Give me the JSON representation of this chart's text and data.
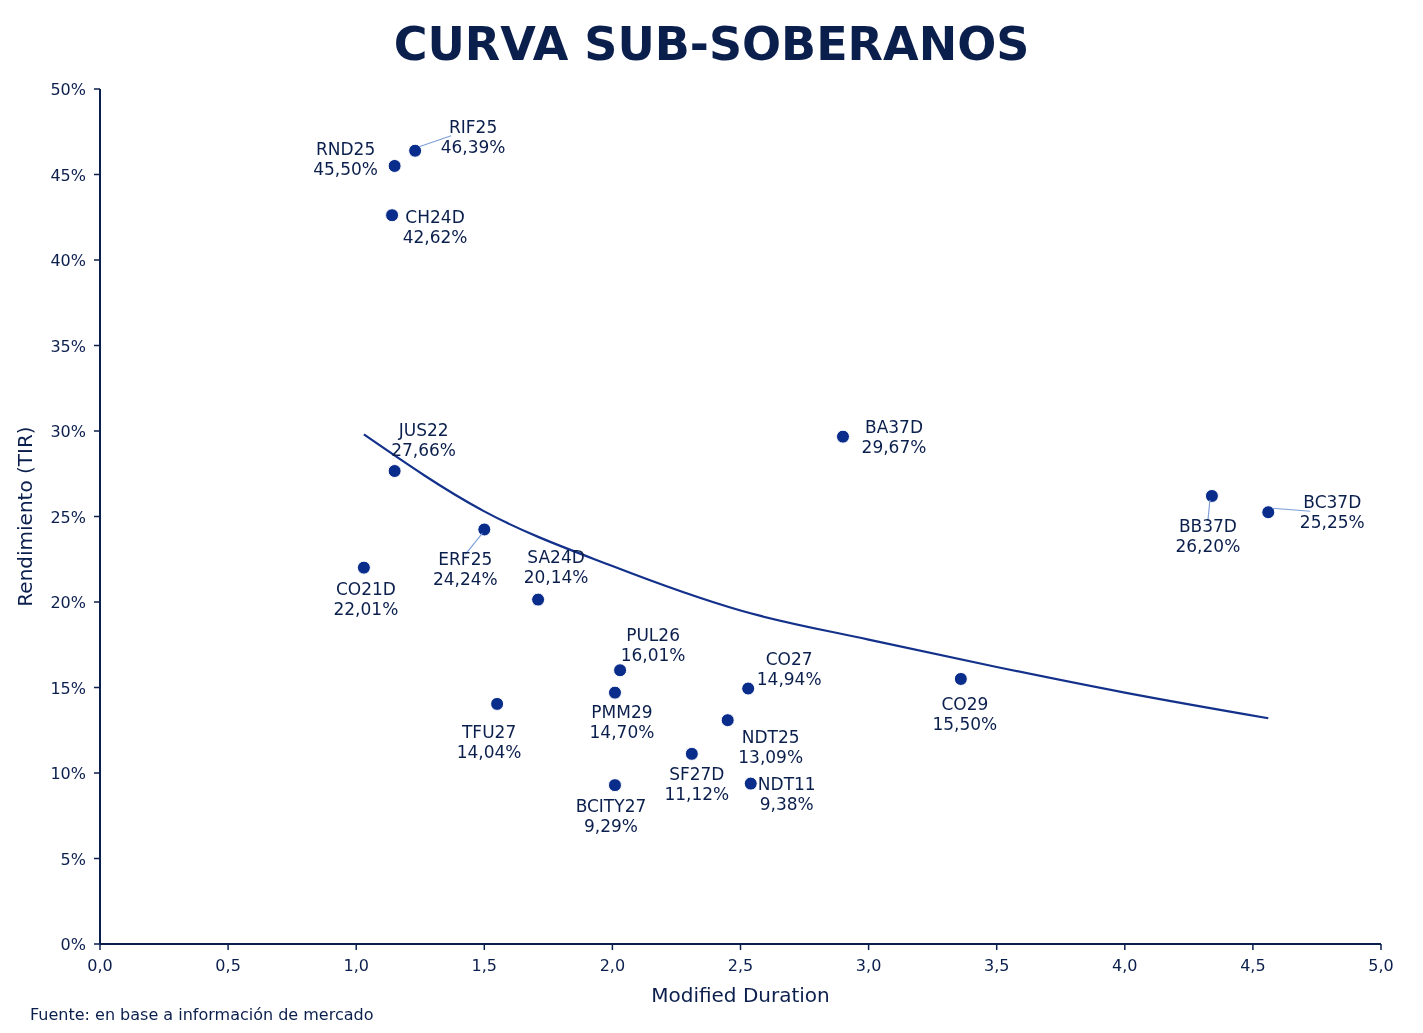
{
  "chart_data": {
    "type": "scatter",
    "title": "CURVA SUB-SOBERANOS",
    "xlabel": "Modified Duration",
    "ylabel": "Rendimiento (TIR)",
    "xlim": [
      0,
      5
    ],
    "ylim": [
      0,
      50
    ],
    "xticks": [
      {
        "value": 0,
        "label": "0,0"
      },
      {
        "value": 0.5,
        "label": "0,5"
      },
      {
        "value": 1,
        "label": "1,0"
      },
      {
        "value": 1.5,
        "label": "1,5"
      },
      {
        "value": 2,
        "label": "2,0"
      },
      {
        "value": 2.5,
        "label": "2,5"
      },
      {
        "value": 3,
        "label": "3,0"
      },
      {
        "value": 3.5,
        "label": "3,5"
      },
      {
        "value": 4,
        "label": "4,0"
      },
      {
        "value": 4.5,
        "label": "4,5"
      },
      {
        "value": 5,
        "label": "5,0"
      }
    ],
    "yticks": [
      {
        "value": 0,
        "label": "0%"
      },
      {
        "value": 5,
        "label": "5%"
      },
      {
        "value": 10,
        "label": "10%"
      },
      {
        "value": 15,
        "label": "15%"
      },
      {
        "value": 20,
        "label": "20%"
      },
      {
        "value": 25,
        "label": "25%"
      },
      {
        "value": 30,
        "label": "30%"
      },
      {
        "value": 35,
        "label": "35%"
      },
      {
        "value": 40,
        "label": "40%"
      },
      {
        "value": 45,
        "label": "45%"
      },
      {
        "value": 50,
        "label": "50%"
      }
    ],
    "grid": false,
    "marker": "circle",
    "series": [
      {
        "color": "#0a2d8c",
        "x": [
          1.23,
          1.15,
          1.14,
          1.15,
          1.5,
          1.03,
          1.71,
          1.55,
          2.03,
          2.01,
          2.01,
          2.31,
          2.45,
          2.53,
          2.54,
          2.9,
          3.36,
          4.34,
          4.56
        ],
        "values": [
          46.39,
          45.5,
          42.62,
          27.66,
          24.24,
          22.01,
          20.14,
          14.04,
          16.01,
          14.7,
          9.29,
          11.12,
          13.09,
          14.94,
          9.38,
          29.67,
          15.5,
          26.2,
          25.25
        ]
      },
      {
        "type": "line",
        "color": "#13318a",
        "line_style": "solid",
        "marker": "none",
        "x": [
          1.03,
          1.5,
          2.0,
          2.5,
          3.0,
          3.5,
          4.0,
          4.56
        ],
        "values": [
          29.8,
          25.3,
          22.1,
          19.5,
          17.8,
          16.2,
          14.7,
          13.2
        ]
      }
    ],
    "annotations": [
      {
        "text": "RIF25\n46,39%",
        "x": 1.23,
        "y": 46.39
      },
      {
        "text": "RND25\n45,50%",
        "x": 1.15,
        "y": 45.5
      },
      {
        "text": "CH24D\n42,62%",
        "x": 1.14,
        "y": 42.62
      },
      {
        "text": "JUS22\n27,66%",
        "x": 1.15,
        "y": 27.66
      },
      {
        "text": "ERF25\n24,24%",
        "x": 1.5,
        "y": 24.24
      },
      {
        "text": "CO21D\n22,01%",
        "x": 1.03,
        "y": 22.01
      },
      {
        "text": "SA24D\n20,14%",
        "x": 1.71,
        "y": 20.14
      },
      {
        "text": "TFU27\n14,04%",
        "x": 1.55,
        "y": 14.04
      },
      {
        "text": "PUL26\n16,01%",
        "x": 2.03,
        "y": 16.01
      },
      {
        "text": "PMM29\n14,70%",
        "x": 2.01,
        "y": 14.7
      },
      {
        "text": "BCITY27\n9,29%",
        "x": 2.01,
        "y": 9.29
      },
      {
        "text": "SF27D\n11,12%",
        "x": 2.31,
        "y": 11.12
      },
      {
        "text": "NDT25\n13,09%",
        "x": 2.45,
        "y": 13.09
      },
      {
        "text": "CO27\n14,94%",
        "x": 2.53,
        "y": 14.94
      },
      {
        "text": "NDT11\n9,38%",
        "x": 2.54,
        "y": 9.38
      },
      {
        "text": "BA37D\n29,67%",
        "x": 2.9,
        "y": 29.67
      },
      {
        "text": "CO29\n15,50%",
        "x": 3.36,
        "y": 15.5
      },
      {
        "text": "BB37D\n26,20%",
        "x": 4.34,
        "y": 26.2
      },
      {
        "text": "BC37D\n25,25%",
        "x": 4.56,
        "y": 25.25
      },
      "Fuente: en base a información de mercado"
    ]
  }
}
